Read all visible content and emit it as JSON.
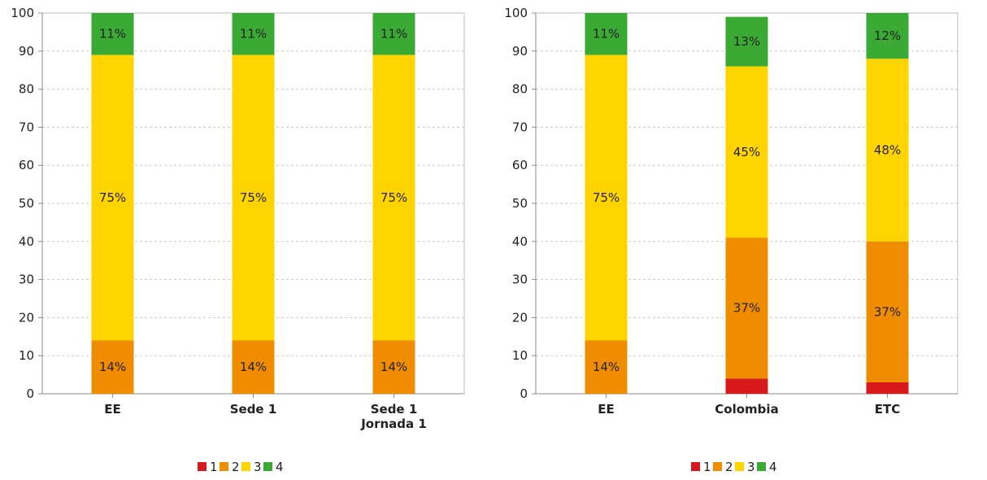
{
  "chart_data": [
    {
      "type": "bar",
      "stacked": true,
      "ylim": [
        0,
        100
      ],
      "yticks": [
        0,
        10,
        20,
        30,
        40,
        50,
        60,
        70,
        80,
        90,
        100
      ],
      "grid": true,
      "legend_position": "bottom",
      "categories": [
        [
          "EE"
        ],
        [
          "Sede 1"
        ],
        [
          "Sede 1",
          "Jornada 1"
        ]
      ],
      "series": [
        {
          "name": "1",
          "color": "#d7191c",
          "values": [
            0,
            0,
            0
          ],
          "labels": [
            "",
            "",
            ""
          ]
        },
        {
          "name": "2",
          "color": "#f08c00",
          "values": [
            14,
            14,
            14
          ],
          "labels": [
            "14%",
            "14%",
            "14%"
          ]
        },
        {
          "name": "3",
          "color": "#ffd400",
          "values": [
            75,
            75,
            75
          ],
          "labels": [
            "75%",
            "75%",
            "75%"
          ]
        },
        {
          "name": "4",
          "color": "#3aaa35",
          "values": [
            11,
            11,
            11
          ],
          "labels": [
            "11%",
            "11%",
            "11%"
          ]
        }
      ]
    },
    {
      "type": "bar",
      "stacked": true,
      "ylim": [
        0,
        100
      ],
      "yticks": [
        0,
        10,
        20,
        30,
        40,
        50,
        60,
        70,
        80,
        90,
        100
      ],
      "grid": true,
      "legend_position": "bottom",
      "categories": [
        [
          "EE"
        ],
        [
          "Colombia"
        ],
        [
          "ETC"
        ]
      ],
      "series": [
        {
          "name": "1",
          "color": "#d7191c",
          "values": [
            0,
            4,
            3
          ],
          "labels": [
            "",
            "",
            ""
          ]
        },
        {
          "name": "2",
          "color": "#f08c00",
          "values": [
            14,
            37,
            37
          ],
          "labels": [
            "14%",
            "37%",
            "37%"
          ]
        },
        {
          "name": "3",
          "color": "#ffd400",
          "values": [
            75,
            45,
            48
          ],
          "labels": [
            "75%",
            "45%",
            "48%"
          ]
        },
        {
          "name": "4",
          "color": "#3aaa35",
          "values": [
            11,
            13,
            12
          ],
          "labels": [
            "11%",
            "13%",
            "12%"
          ]
        }
      ]
    }
  ]
}
